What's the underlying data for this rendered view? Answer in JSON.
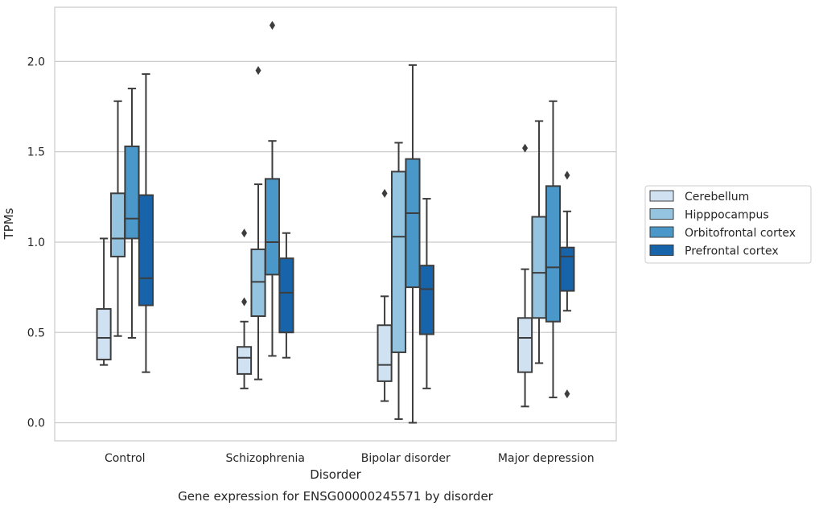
{
  "chart_data": {
    "type": "box",
    "caption": "Gene expression for ENSG00000245571 by disorder",
    "xlabel": "Disorder",
    "ylabel": "TPMs",
    "ylim": [
      -0.1,
      2.3
    ],
    "yticks": [
      0.0,
      0.5,
      1.0,
      1.5,
      2.0
    ],
    "ytick_labels": [
      "0.0",
      "0.5",
      "1.0",
      "1.5",
      "2.0"
    ],
    "grid": "horizontal",
    "legend_position": "right",
    "categories": [
      "Control",
      "Schizophrenia",
      "Bipolar disorder",
      "Major depression"
    ],
    "series": [
      {
        "name": "Cerebellum",
        "color": "#d0e1f2",
        "boxes": [
          {
            "whislo": 0.32,
            "q1": 0.35,
            "med": 0.47,
            "q3": 0.63,
            "whishi": 1.02,
            "fliers": []
          },
          {
            "whislo": 0.19,
            "q1": 0.27,
            "med": 0.36,
            "q3": 0.42,
            "whishi": 0.56,
            "fliers": [
              0.67,
              1.05
            ]
          },
          {
            "whislo": 0.12,
            "q1": 0.23,
            "med": 0.32,
            "q3": 0.54,
            "whishi": 0.7,
            "fliers": [
              1.27
            ]
          },
          {
            "whislo": 0.09,
            "q1": 0.28,
            "med": 0.47,
            "q3": 0.58,
            "whishi": 0.85,
            "fliers": [
              1.52
            ]
          }
        ]
      },
      {
        "name": "Hipppocampus",
        "color": "#94c4df",
        "boxes": [
          {
            "whislo": 0.48,
            "q1": 0.92,
            "med": 1.02,
            "q3": 1.27,
            "whishi": 1.78,
            "fliers": []
          },
          {
            "whislo": 0.24,
            "q1": 0.59,
            "med": 0.78,
            "q3": 0.96,
            "whishi": 1.32,
            "fliers": [
              1.95
            ]
          },
          {
            "whislo": 0.02,
            "q1": 0.39,
            "med": 1.03,
            "q3": 1.39,
            "whishi": 1.55,
            "fliers": []
          },
          {
            "whislo": 0.33,
            "q1": 0.58,
            "med": 0.83,
            "q3": 1.14,
            "whishi": 1.67,
            "fliers": []
          }
        ]
      },
      {
        "name": "Orbitofrontal cortex",
        "color": "#4a98c9",
        "boxes": [
          {
            "whislo": 0.47,
            "q1": 1.02,
            "med": 1.13,
            "q3": 1.53,
            "whishi": 1.85,
            "fliers": []
          },
          {
            "whislo": 0.37,
            "q1": 0.82,
            "med": 1.0,
            "q3": 1.35,
            "whishi": 1.56,
            "fliers": [
              2.2
            ]
          },
          {
            "whislo": 0.0,
            "q1": 0.75,
            "med": 1.16,
            "q3": 1.46,
            "whishi": 1.98,
            "fliers": []
          },
          {
            "whislo": 0.14,
            "q1": 0.56,
            "med": 0.86,
            "q3": 1.31,
            "whishi": 1.78,
            "fliers": []
          }
        ]
      },
      {
        "name": "Prefrontal cortex",
        "color": "#1764ab",
        "boxes": [
          {
            "whislo": 0.28,
            "q1": 0.65,
            "med": 0.8,
            "q3": 1.26,
            "whishi": 1.93,
            "fliers": []
          },
          {
            "whislo": 0.36,
            "q1": 0.5,
            "med": 0.72,
            "q3": 0.91,
            "whishi": 1.05,
            "fliers": []
          },
          {
            "whislo": 0.19,
            "q1": 0.49,
            "med": 0.74,
            "q3": 0.87,
            "whishi": 1.24,
            "fliers": []
          },
          {
            "whislo": 0.62,
            "q1": 0.73,
            "med": 0.92,
            "q3": 0.97,
            "whishi": 1.17,
            "fliers": [
              0.16,
              1.37
            ]
          }
        ]
      }
    ]
  }
}
